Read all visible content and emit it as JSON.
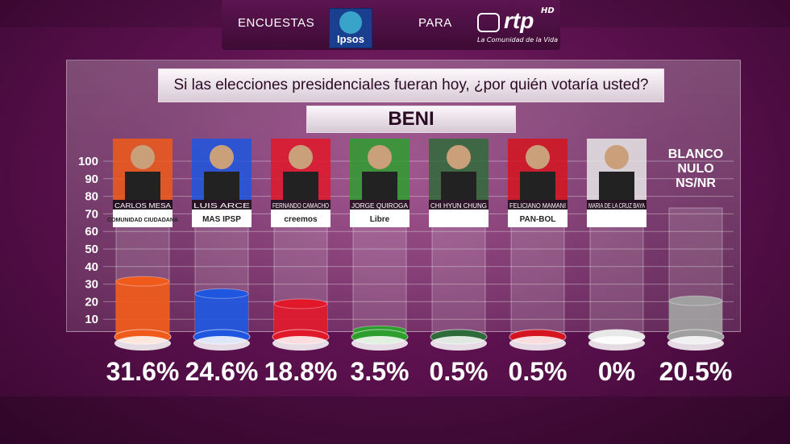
{
  "header": {
    "encuestas_label": "ENCUESTAS",
    "para_label": "PARA",
    "ipsos_logo_text": "Ipsos",
    "rtp_brand": "rtp",
    "rtp_hd": "HD",
    "rtp_tagline": "La Comunidad de la Vida"
  },
  "question": "Si las elecciones presidenciales fueran hoy, ¿por quién votaría usted?",
  "region": "BENI",
  "colors": {
    "mesa": "#f05a1a",
    "arce": "#1f56e0",
    "camacho": "#e0182a",
    "quiroga": "#2e9e2e",
    "chi": "#2f6b3a",
    "mamani": "#d4141e",
    "baya": "#e8e8e8",
    "blanco": "#a0a0a0"
  },
  "chart_data": {
    "type": "bar",
    "title": "Si las elecciones presidenciales fueran hoy, ¿por quién votaría usted?",
    "subtitle": "BENI",
    "categories": [
      "CARLOS MESA",
      "LUIS ARCE",
      "FERNANDO CAMACHO",
      "JORGE QUIROGA",
      "CHI HYUN CHUNG",
      "FELICIANO MAMANI",
      "MARIA DE LA CRUZ BAYA",
      "BLANCO NULO NS/NR"
    ],
    "parties": [
      "COMUNIDAD CIUDADANA",
      "MAS IPSP",
      "creemos",
      "Libre",
      "",
      "PAN-BOL",
      "",
      ""
    ],
    "values": [
      31.6,
      24.6,
      18.8,
      3.5,
      0.5,
      0.5,
      0,
      20.5
    ],
    "labels": [
      "31.6%",
      "24.6%",
      "18.8%",
      "3.5%",
      "0.5%",
      "0.5%",
      "0%",
      "20.5%"
    ],
    "yticks": [
      10,
      20,
      30,
      40,
      50,
      60,
      70,
      80,
      90,
      100
    ],
    "ylim": [
      0,
      100
    ],
    "blank_label_lines": [
      "BLANCO",
      "NULO",
      "NS/NR"
    ]
  }
}
